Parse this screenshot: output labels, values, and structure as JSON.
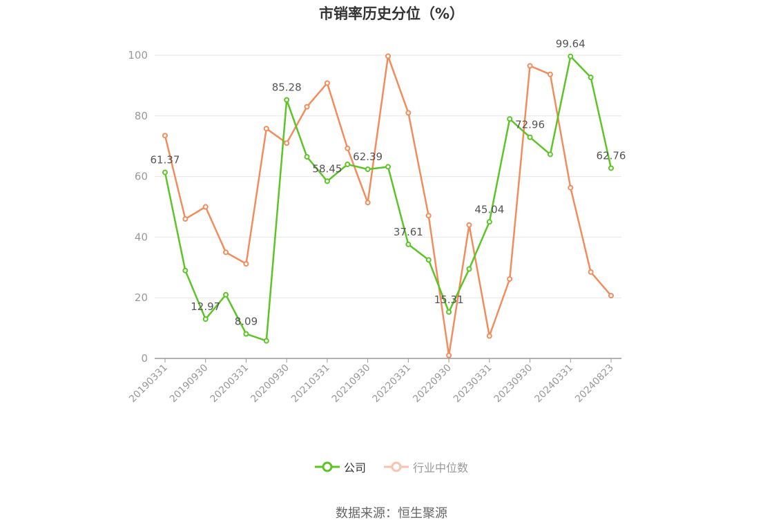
{
  "chart_data": {
    "type": "line",
    "title": "市销率历史分位（%）",
    "ylim": [
      0,
      100
    ],
    "y_ticks": [
      0,
      20,
      40,
      60,
      80,
      100
    ],
    "grid": true,
    "legend_position": "bottom",
    "x_tick_labels": [
      "20190331",
      "20190930",
      "20200331",
      "20200930",
      "20210331",
      "20210930",
      "20220331",
      "20220930",
      "20230331",
      "20230930",
      "20240331",
      "20240823"
    ],
    "x": [
      "20190331",
      "20190630",
      "20190930",
      "20191231",
      "20200331",
      "20200630",
      "20200930",
      "20201231",
      "20210331",
      "20210630",
      "20210930",
      "20211231",
      "20220331",
      "20220630",
      "20220930",
      "20221231",
      "20230331",
      "20230630",
      "20230930",
      "20231231",
      "20240331",
      "20240630",
      "20240823"
    ],
    "series": [
      {
        "name": "公司",
        "color": "#5cc424",
        "values": [
          61.37,
          29,
          12.97,
          21,
          8.09,
          5.8,
          85.28,
          66.5,
          58.45,
          64,
          62.39,
          63.2,
          37.61,
          32.5,
          15.31,
          29.5,
          45.04,
          79,
          72.96,
          67.3,
          99.64,
          92.7,
          62.76
        ],
        "labels": {
          "0": "61.37",
          "2": "12.97",
          "4": "8.09",
          "6": "85.28",
          "8": "58.45",
          "10": "62.39",
          "12": "37.61",
          "14": "15.31",
          "16": "45.04",
          "18": "72.96",
          "20": "99.64",
          "22": "62.76"
        }
      },
      {
        "name": "行业中位数",
        "color": "#f28c5c",
        "values": [
          73.5,
          46,
          50,
          35,
          31.2,
          75.8,
          71,
          83,
          90.8,
          69.3,
          51.4,
          99.7,
          81,
          47.1,
          1,
          44,
          7.4,
          26.2,
          96.5,
          93.7,
          56.3,
          28.5,
          20.7
        ]
      }
    ]
  },
  "source": "数据来源：恒生聚源"
}
